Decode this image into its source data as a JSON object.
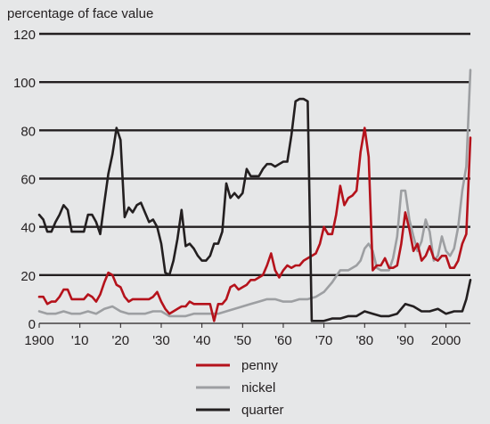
{
  "chart_data": {
    "type": "line",
    "title": "",
    "ylabel": "percentage of face value",
    "xlabel": "",
    "xlim": [
      1900,
      2006
    ],
    "ylim": [
      0,
      120
    ],
    "yticks": [
      0,
      20,
      40,
      60,
      80,
      100,
      120
    ],
    "ytick_labels": [
      "0",
      "20",
      "40",
      "60",
      "80",
      "100",
      "120"
    ],
    "xticks": [
      1900,
      1910,
      1920,
      1930,
      1940,
      1950,
      1960,
      1970,
      1980,
      1990,
      2000
    ],
    "xtick_labels": [
      "1900",
      "'10",
      "'20",
      "'30",
      "'40",
      "'50",
      "'60",
      "'70",
      "'80",
      "'90",
      "2000"
    ],
    "grid": true,
    "legend_position": "bottom-center",
    "series": [
      {
        "name": "penny",
        "color": "#b5121b",
        "x": [
          1900,
          1901,
          1902,
          1903,
          1904,
          1905,
          1906,
          1907,
          1908,
          1909,
          1910,
          1911,
          1912,
          1913,
          1914,
          1915,
          1916,
          1917,
          1918,
          1919,
          1920,
          1921,
          1922,
          1923,
          1924,
          1925,
          1926,
          1927,
          1928,
          1929,
          1930,
          1931,
          1932,
          1933,
          1934,
          1935,
          1936,
          1937,
          1938,
          1939,
          1940,
          1941,
          1942,
          1943,
          1944,
          1945,
          1946,
          1947,
          1948,
          1949,
          1950,
          1951,
          1952,
          1953,
          1954,
          1955,
          1956,
          1957,
          1958,
          1959,
          1960,
          1961,
          1962,
          1963,
          1964,
          1965,
          1966,
          1967,
          1968,
          1969,
          1970,
          1971,
          1972,
          1973,
          1974,
          1975,
          1976,
          1977,
          1978,
          1979,
          1980,
          1981,
          1982,
          1983,
          1984,
          1985,
          1986,
          1987,
          1988,
          1989,
          1990,
          1991,
          1992,
          1993,
          1994,
          1995,
          1996,
          1997,
          1998,
          1999,
          2000,
          2001,
          2002,
          2003,
          2004,
          2005,
          2006
        ],
        "values": [
          11,
          11,
          8,
          9,
          9,
          11,
          14,
          14,
          10,
          10,
          10,
          10,
          12,
          11,
          9,
          12,
          17,
          21,
          20,
          16,
          15,
          11,
          9,
          10,
          10,
          10,
          10,
          10,
          11,
          13,
          9,
          6,
          4,
          5,
          6,
          7,
          7,
          9,
          8,
          8,
          8,
          8,
          8,
          1,
          8,
          8,
          10,
          15,
          16,
          14,
          15,
          16,
          18,
          18,
          19,
          20,
          24,
          29,
          22,
          19,
          22,
          24,
          23,
          24,
          24,
          26,
          27,
          28,
          29,
          33,
          40,
          37,
          37,
          45,
          57,
          49,
          52,
          53,
          55,
          71,
          81,
          69,
          22,
          24,
          24,
          27,
          23,
          23,
          24,
          33,
          46,
          39,
          30,
          33,
          26,
          28,
          32,
          27,
          26,
          28,
          28,
          23,
          23,
          26,
          33,
          37,
          77
        ]
      },
      {
        "name": "nickel",
        "color": "#9d9fa2",
        "x": [
          1900,
          1902,
          1904,
          1906,
          1908,
          1910,
          1912,
          1914,
          1916,
          1918,
          1920,
          1922,
          1924,
          1926,
          1928,
          1930,
          1932,
          1934,
          1936,
          1938,
          1940,
          1942,
          1944,
          1946,
          1948,
          1950,
          1952,
          1954,
          1956,
          1958,
          1960,
          1962,
          1964,
          1966,
          1968,
          1970,
          1972,
          1974,
          1976,
          1978,
          1979,
          1980,
          1981,
          1982,
          1983,
          1984,
          1985,
          1986,
          1987,
          1988,
          1989,
          1990,
          1991,
          1992,
          1993,
          1994,
          1995,
          1996,
          1997,
          1998,
          1999,
          2000,
          2001,
          2002,
          2003,
          2004,
          2005,
          2006
        ],
        "values": [
          5,
          4,
          4,
          5,
          4,
          4,
          5,
          4,
          6,
          7,
          5,
          4,
          4,
          4,
          5,
          5,
          3,
          3,
          3,
          4,
          4,
          4,
          4,
          5,
          6,
          7,
          8,
          9,
          10,
          10,
          9,
          9,
          10,
          10,
          11,
          13,
          17,
          22,
          22,
          24,
          26,
          31,
          33,
          30,
          23,
          22,
          22,
          22,
          27,
          36,
          55,
          55,
          43,
          36,
          30,
          34,
          43,
          38,
          26,
          28,
          36,
          30,
          28,
          31,
          40,
          55,
          65,
          105
        ]
      },
      {
        "name": "quarter",
        "color": "#231f20",
        "x": [
          1900,
          1901,
          1902,
          1903,
          1904,
          1905,
          1906,
          1907,
          1908,
          1909,
          1910,
          1911,
          1912,
          1913,
          1914,
          1915,
          1916,
          1917,
          1918,
          1919,
          1920,
          1921,
          1922,
          1923,
          1924,
          1925,
          1926,
          1927,
          1928,
          1929,
          1930,
          1931,
          1932,
          1933,
          1934,
          1935,
          1936,
          1937,
          1938,
          1939,
          1940,
          1941,
          1942,
          1943,
          1944,
          1945,
          1946,
          1947,
          1948,
          1949,
          1950,
          1951,
          1952,
          1953,
          1954,
          1955,
          1956,
          1957,
          1958,
          1959,
          1960,
          1961,
          1962,
          1963,
          1964,
          1965,
          1966,
          1967,
          1968,
          1970,
          1972,
          1974,
          1976,
          1978,
          1980,
          1982,
          1984,
          1986,
          1988,
          1990,
          1992,
          1994,
          1996,
          1998,
          2000,
          2002,
          2004,
          2005,
          2006
        ],
        "values": [
          45,
          43,
          38,
          38,
          42,
          45,
          49,
          47,
          38,
          38,
          38,
          38,
          45,
          45,
          42,
          37,
          50,
          62,
          70,
          81,
          76,
          44,
          48,
          46,
          49,
          50,
          46,
          42,
          43,
          40,
          33,
          21,
          20,
          26,
          35,
          47,
          32,
          33,
          31,
          28,
          26,
          26,
          28,
          33,
          33,
          38,
          58,
          52,
          54,
          52,
          54,
          64,
          61,
          61,
          61,
          64,
          66,
          66,
          65,
          66,
          67,
          67,
          78,
          92,
          93,
          93,
          92,
          1,
          1,
          1,
          2,
          2,
          3,
          3,
          5,
          4,
          3,
          3,
          4,
          8,
          7,
          5,
          5,
          6,
          4,
          5,
          5,
          10,
          18
        ]
      }
    ]
  }
}
